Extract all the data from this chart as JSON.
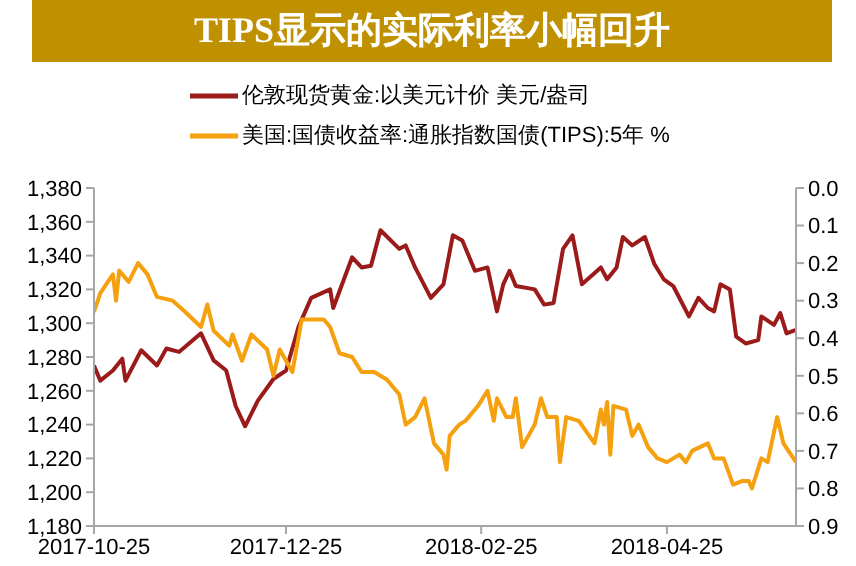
{
  "chart_data": {
    "type": "line",
    "title": "TIPS显示的实际利率小幅回升",
    "series": [
      {
        "name": "伦敦现货黄金:以美元计价 美元/盎司",
        "color": "#9b1b1b",
        "x": [
          "2017-10-25",
          "2017-10-27",
          "2017-10-31",
          "2017-11-03",
          "2017-11-04",
          "2017-11-09",
          "2017-11-14",
          "2017-11-17",
          "2017-11-21",
          "2017-11-28",
          "2017-12-02",
          "2017-12-06",
          "2017-12-09",
          "2017-12-12",
          "2017-12-16",
          "2017-12-21",
          "2017-12-25",
          "2017-12-29",
          "2018-01-02",
          "2018-01-08",
          "2018-01-09",
          "2018-01-15",
          "2018-01-18",
          "2018-01-21",
          "2018-01-24",
          "2018-01-30",
          "2018-02-01",
          "2018-02-04",
          "2018-02-09",
          "2018-02-13",
          "2018-02-16",
          "2018-02-19",
          "2018-02-23",
          "2018-02-27",
          "2018-03-02",
          "2018-03-04",
          "2018-03-06",
          "2018-03-08",
          "2018-03-14",
          "2018-03-17",
          "2018-03-20",
          "2018-03-23",
          "2018-03-26",
          "2018-03-29",
          "2018-04-04",
          "2018-04-06",
          "2018-04-09",
          "2018-04-11",
          "2018-04-14",
          "2018-04-18",
          "2018-04-21",
          "2018-04-24",
          "2018-04-27",
          "2018-05-02",
          "2018-05-05",
          "2018-05-08",
          "2018-05-10",
          "2018-05-12",
          "2018-05-15",
          "2018-05-17",
          "2018-05-20",
          "2018-05-24",
          "2018-05-25",
          "2018-05-29",
          "2018-05-31",
          "2018-06-02",
          "2018-06-05"
        ],
        "values": [
          1275,
          1266,
          1272,
          1279,
          1266,
          1284,
          1275,
          1285,
          1283,
          1294,
          1278,
          1272,
          1251,
          1239,
          1254,
          1267,
          1272,
          1298,
          1315,
          1320,
          1309,
          1339,
          1333,
          1334,
          1355,
          1344,
          1346,
          1333,
          1315,
          1323,
          1352,
          1349,
          1331,
          1333,
          1307,
          1323,
          1331,
          1322,
          1320,
          1311,
          1312,
          1344,
          1352,
          1323,
          1333,
          1326,
          1333,
          1351,
          1346,
          1351,
          1335,
          1326,
          1322,
          1304,
          1315,
          1309,
          1307,
          1323,
          1320,
          1292,
          1288,
          1290,
          1304,
          1299,
          1306,
          1294,
          1296
        ]
      },
      {
        "name": "美国:国债收益率:通胀指数国债(TIPS):5年 %",
        "color": "#f5a00f",
        "axis": "y2",
        "x": [
          "2017-10-25",
          "2017-10-27",
          "2017-10-31",
          "2017-11-01",
          "2017-11-02",
          "2017-11-05",
          "2017-11-08",
          "2017-11-10",
          "2017-11-11",
          "2017-11-14",
          "2017-11-19",
          "2017-11-23",
          "2017-11-28",
          "2017-11-30",
          "2017-12-02",
          "2017-12-07",
          "2017-12-08",
          "2017-12-11",
          "2017-12-14",
          "2017-12-19",
          "2017-12-21",
          "2017-12-23",
          "2017-12-27",
          "2017-12-30",
          "2018-01-02",
          "2018-01-06",
          "2018-01-08",
          "2018-01-11",
          "2018-01-15",
          "2018-01-18",
          "2018-01-22",
          "2018-01-26",
          "2018-01-30",
          "2018-02-01",
          "2018-02-04",
          "2018-02-07",
          "2018-02-10",
          "2018-02-13",
          "2018-02-14",
          "2018-02-15",
          "2018-02-18",
          "2018-02-20",
          "2018-02-24",
          "2018-02-27",
          "2018-03-01",
          "2018-03-02",
          "2018-03-05",
          "2018-03-07",
          "2018-03-08",
          "2018-03-10",
          "2018-03-14",
          "2018-03-16",
          "2018-03-18",
          "2018-03-21",
          "2018-03-22",
          "2018-03-24",
          "2018-03-28",
          "2018-04-02",
          "2018-04-04",
          "2018-04-05",
          "2018-04-06",
          "2018-04-07",
          "2018-04-08",
          "2018-04-12",
          "2018-04-14",
          "2018-04-16",
          "2018-04-19",
          "2018-04-22",
          "2018-04-25",
          "2018-04-29",
          "2018-05-01",
          "2018-05-03",
          "2018-05-08",
          "2018-05-10",
          "2018-05-13",
          "2018-05-16",
          "2018-05-19",
          "2018-05-21",
          "2018-05-22",
          "2018-05-25",
          "2018-05-27",
          "2018-05-30",
          "2018-06-01",
          "2018-06-05"
        ],
        "values": [
          0.33,
          0.28,
          0.23,
          0.3,
          0.22,
          0.25,
          0.2,
          0.22,
          0.23,
          0.29,
          0.3,
          0.33,
          0.37,
          0.31,
          0.38,
          0.42,
          0.39,
          0.46,
          0.39,
          0.43,
          0.5,
          0.43,
          0.49,
          0.35,
          0.35,
          0.35,
          0.37,
          0.44,
          0.45,
          0.49,
          0.49,
          0.51,
          0.55,
          0.63,
          0.61,
          0.56,
          0.68,
          0.71,
          0.75,
          0.66,
          0.63,
          0.62,
          0.58,
          0.54,
          0.62,
          0.56,
          0.61,
          0.61,
          0.56,
          0.69,
          0.63,
          0.56,
          0.61,
          0.61,
          0.73,
          0.61,
          0.62,
          0.68,
          0.59,
          0.63,
          0.57,
          0.71,
          0.58,
          0.59,
          0.66,
          0.63,
          0.69,
          0.72,
          0.73,
          0.71,
          0.73,
          0.7,
          0.68,
          0.72,
          0.72,
          0.79,
          0.78,
          0.78,
          0.8,
          0.72,
          0.73,
          0.61,
          0.68,
          0.73
        ]
      }
    ],
    "xlim": [
      "2017-10-25",
      "2018-06-05"
    ],
    "xticks": [
      "2017-10-25",
      "2017-12-25",
      "2018-02-25",
      "2018-04-25"
    ],
    "ylim": [
      1180,
      1380
    ],
    "yticks": [
      {
        "value": 1180,
        "label": "1,180"
      },
      {
        "value": 1200,
        "label": "1,200"
      },
      {
        "value": 1220,
        "label": "1,220"
      },
      {
        "value": 1240,
        "label": "1,240"
      },
      {
        "value": 1260,
        "label": "1,260"
      },
      {
        "value": 1280,
        "label": "1,280"
      },
      {
        "value": 1300,
        "label": "1,300"
      },
      {
        "value": 1320,
        "label": "1,320"
      },
      {
        "value": 1340,
        "label": "1,340"
      },
      {
        "value": 1360,
        "label": "1,360"
      },
      {
        "value": 1380,
        "label": "1,380"
      }
    ],
    "y2lim": [
      0.9,
      0
    ],
    "y2ticks": [
      {
        "value": 0,
        "label": "0.0"
      },
      0.1,
      0.2,
      0.3,
      0.4,
      0.5,
      0.6,
      0.7,
      0.8,
      0.9
    ],
    "legend": "top",
    "grid": false,
    "marker": "none",
    "line_style": "solid"
  }
}
